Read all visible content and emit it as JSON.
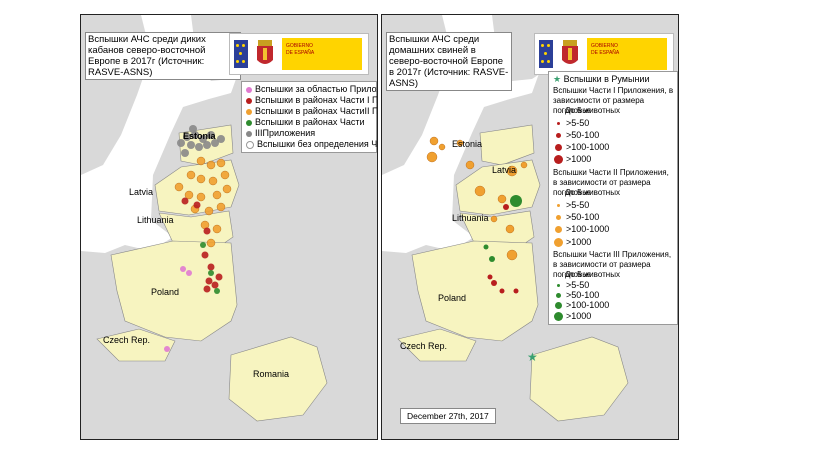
{
  "left_panel": {
    "title": "Вспышки АЧС среди диких кабанов северо-восточной Европе в 2017г (Источник: RASVE-ASNS)",
    "legend": [
      {
        "label": "Вспышки за областью Приложения",
        "color": "#e07ad0"
      },
      {
        "label": "Вспышки в районах Части I Приложения",
        "color": "#b81e1e"
      },
      {
        "label": "Вспышки в районах ЧастиII Приложения",
        "color": "#f0a030"
      },
      {
        "label": "Вспышки в районах Части",
        "color": "#2e8b2e"
      },
      {
        "label": "IIIПриложения",
        "color": "#888888"
      },
      {
        "label": "Вспышки без определения Части",
        "color": "#ffffff"
      }
    ],
    "countries": {
      "estonia": "Estonia",
      "latvia": "Latvia",
      "lithuania": "Lithuania",
      "poland": "Poland",
      "czech": "Czech Rep.",
      "romania": "Romania"
    }
  },
  "right_panel": {
    "title": "Вспышки АЧС среди домашних свиней в северо-восточной Европе в 2017г (Источник: RASVE-ASNS)",
    "legend": {
      "romania": "Вспышки в Румынии",
      "part1_heading": "Вспышки Части I Приложения, в зависимости от размера поголовья",
      "part2_heading": "Вспышки Части II Приложения, в зависимости от размера поголовья",
      "part3_heading": "Вспышки Части III Приложения, в зависимости от размера поголовья",
      "up_to_5": "До 5 животных",
      "size_classes": [
        ">5-50",
        ">50-100",
        ">100-1000",
        ">1000"
      ],
      "colors": {
        "part1": "#b81e1e",
        "part2": "#f0a030",
        "part3": "#2e8b2e",
        "romania": "#3aa070"
      }
    },
    "countries": {
      "estonia": "Estonia",
      "latvia": "Latvia",
      "lithuania": "Lithuania",
      "poland": "Poland",
      "czech": "Czech Rep."
    },
    "date": "December 27th, 2017"
  },
  "colors": {
    "highlight_land": "#f7f4c0",
    "other_land": "#d9d9d9",
    "sea": "#ffffff"
  }
}
